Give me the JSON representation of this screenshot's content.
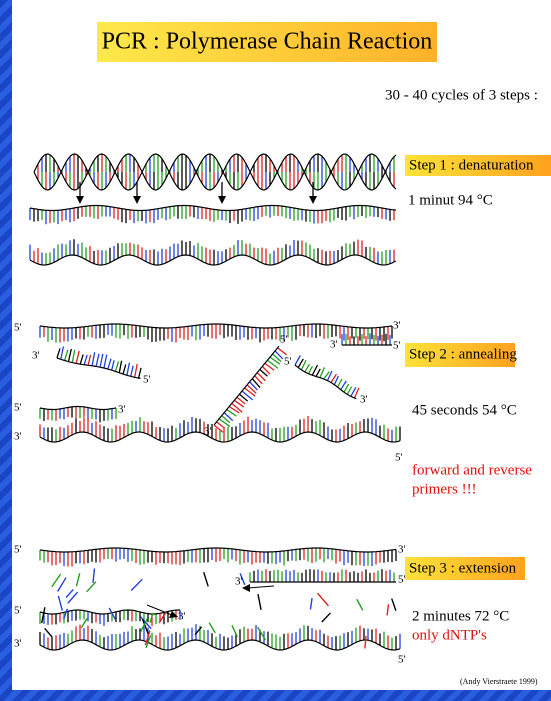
{
  "title": "PCR : Polymerase Chain Reaction",
  "cycles": "30 - 40 cycles of 3 steps :",
  "steps": [
    {
      "label": "Step 1 : denaturation",
      "lines": [
        "1 minut 94 °C"
      ]
    },
    {
      "label": "Step 2 : annealing",
      "lines": [
        "45 seconds 54 °C"
      ],
      "note": [
        "forward and reverse",
        "primers !!!"
      ]
    },
    {
      "label": "Step 3 : extension",
      "lines": [
        "2 minutes 72 °C"
      ],
      "note": [
        "only dNTP's"
      ]
    }
  ],
  "strand_labels": [
    "5'",
    "3'",
    "3'",
    "5'",
    "3'",
    "5'",
    "5'",
    "3'",
    "5'",
    "3'",
    "5'",
    "3'",
    "3'",
    "5'",
    "5'",
    "3'",
    "3'",
    "5'",
    "3'",
    "5'",
    "3'",
    "5'"
  ],
  "credit": "(Andy Vierstraete 1999)"
}
